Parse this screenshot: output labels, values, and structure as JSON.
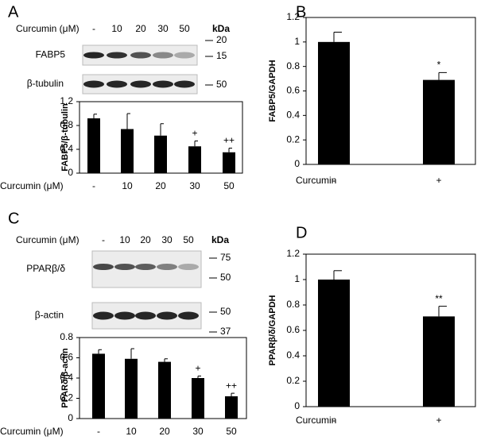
{
  "chart_data": [
    {
      "type": "bar",
      "panel_label": "A",
      "blot": {
        "treatment_label": "Curcumin (μM)",
        "lanes": [
          "-",
          "10",
          "20",
          "30",
          "50"
        ],
        "unit": "kDa",
        "rows": [
          {
            "name": "FABP5",
            "markers": [
              "20",
              "15"
            ]
          },
          {
            "name": "β-tubulin",
            "markers": [
              "50"
            ]
          }
        ]
      },
      "categories": [
        "-",
        "10",
        "20",
        "30",
        "50"
      ],
      "values": [
        0.92,
        0.74,
        0.63,
        0.45,
        0.35
      ],
      "errors": [
        0.07,
        0.26,
        0.2,
        0.09,
        0.07
      ],
      "annotations": [
        null,
        null,
        null,
        "+",
        "++"
      ],
      "color": "#000000",
      "xlabel": "Curcumin (μM)",
      "ylabel": "FABP5/β-tubulin",
      "ylim": [
        0,
        1.2
      ],
      "yticks": [
        0,
        0.4,
        0.8,
        1.2
      ]
    },
    {
      "type": "bar",
      "panel_label": "B",
      "categories": [
        "-",
        "+"
      ],
      "values": [
        1,
        0.69
      ],
      "errors": [
        0.08,
        0.06
      ],
      "annotations": [
        null,
        "*"
      ],
      "color": "#000000",
      "xlabel": "Curcumin",
      "ylabel": "FABP5/GAPDH",
      "ylim": [
        0,
        1.2
      ],
      "yticks": [
        0,
        0.2,
        0.4,
        0.6,
        0.8,
        1,
        1.2
      ]
    },
    {
      "type": "bar",
      "panel_label": "C",
      "blot": {
        "treatment_label": "Curcumin (μM)",
        "lanes": [
          "-",
          "10",
          "20",
          "30",
          "50"
        ],
        "unit": "kDa",
        "rows": [
          {
            "name": "PPARβ/δ",
            "markers": [
              "75",
              "50"
            ]
          },
          {
            "name": "β-actin",
            "markers": [
              "50",
              "37"
            ]
          }
        ]
      },
      "categories": [
        "-",
        "10",
        "20",
        "30",
        "50"
      ],
      "values": [
        0.64,
        0.59,
        0.56,
        0.4,
        0.22
      ],
      "errors": [
        0.04,
        0.1,
        0.03,
        0.02,
        0.03
      ],
      "annotations": [
        null,
        null,
        null,
        "+",
        "++"
      ],
      "color": "#000000",
      "xlabel": "Curcumin (μM)",
      "ylabel": "PPARδ/β-actin",
      "ylim": [
        0,
        0.8
      ],
      "yticks": [
        0,
        0.2,
        0.4,
        0.6,
        0.8
      ]
    },
    {
      "type": "bar",
      "panel_label": "D",
      "categories": [
        "-",
        "+"
      ],
      "values": [
        1,
        0.71
      ],
      "errors": [
        0.07,
        0.08
      ],
      "annotations": [
        null,
        "**"
      ],
      "color": "#000000",
      "xlabel": "Curcumin",
      "ylabel": "PPARβ/δ/GAPDH",
      "ylim": [
        0,
        1.2
      ],
      "yticks": [
        0,
        0.2,
        0.4,
        0.6,
        0.8,
        1,
        1.2
      ]
    }
  ]
}
